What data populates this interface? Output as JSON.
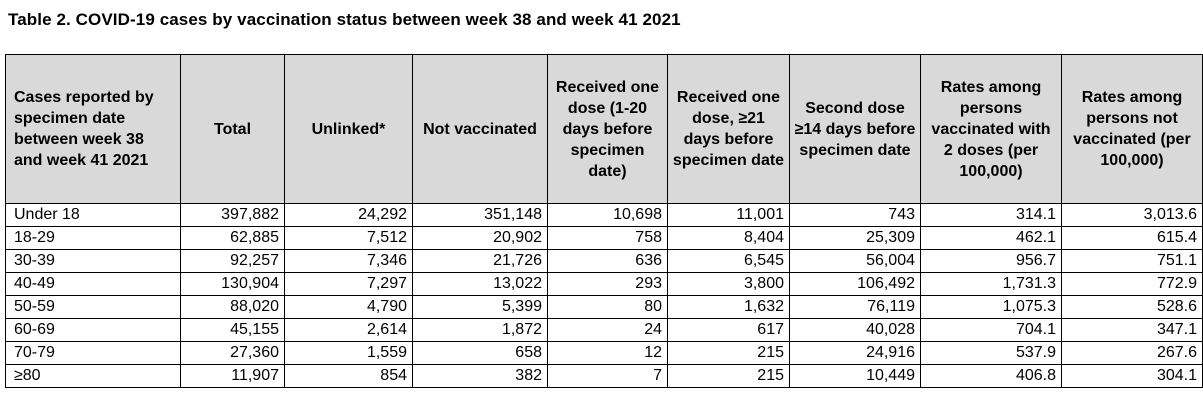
{
  "caption": "Table 2. COVID-19 cases by vaccination status between week 38 and week 41 2021",
  "columns": [
    "Cases reported by specimen date between week 38 and week 41 2021",
    "Total",
    "Unlinked*",
    "Not vaccinated",
    "Received one dose (1-20 days before specimen date)",
    "Received one dose, ≥21 days before specimen date",
    "Second dose ≥14 days before specimen date",
    "Rates among persons vaccinated with 2 doses (per 100,000)",
    "Rates among persons not vaccinated (per 100,000)"
  ],
  "rows": [
    [
      "Under 18",
      "397,882",
      "24,292",
      "351,148",
      "10,698",
      "11,001",
      "743",
      "314.1",
      "3,013.6"
    ],
    [
      "18-29",
      "62,885",
      "7,512",
      "20,902",
      "758",
      "8,404",
      "25,309",
      "462.1",
      "615.4"
    ],
    [
      "30-39",
      "92,257",
      "7,346",
      "21,726",
      "636",
      "6,545",
      "56,004",
      "956.7",
      "751.1"
    ],
    [
      "40-49",
      "130,904",
      "7,297",
      "13,022",
      "293",
      "3,800",
      "106,492",
      "1,731.3",
      "772.9"
    ],
    [
      "50-59",
      "88,020",
      "4,790",
      "5,399",
      "80",
      "1,632",
      "76,119",
      "1,075.3",
      "528.6"
    ],
    [
      "60-69",
      "45,155",
      "2,614",
      "1,872",
      "24",
      "617",
      "40,028",
      "704.1",
      "347.1"
    ],
    [
      "70-79",
      "27,360",
      "1,559",
      "658",
      "12",
      "215",
      "24,916",
      "537.9",
      "267.6"
    ],
    [
      "≥80",
      "11,907",
      "854",
      "382",
      "7",
      "215",
      "10,449",
      "406.8",
      "304.1"
    ]
  ],
  "colors": {
    "header_background": "#d9d9d9",
    "border": "#000000",
    "text": "#000000"
  }
}
